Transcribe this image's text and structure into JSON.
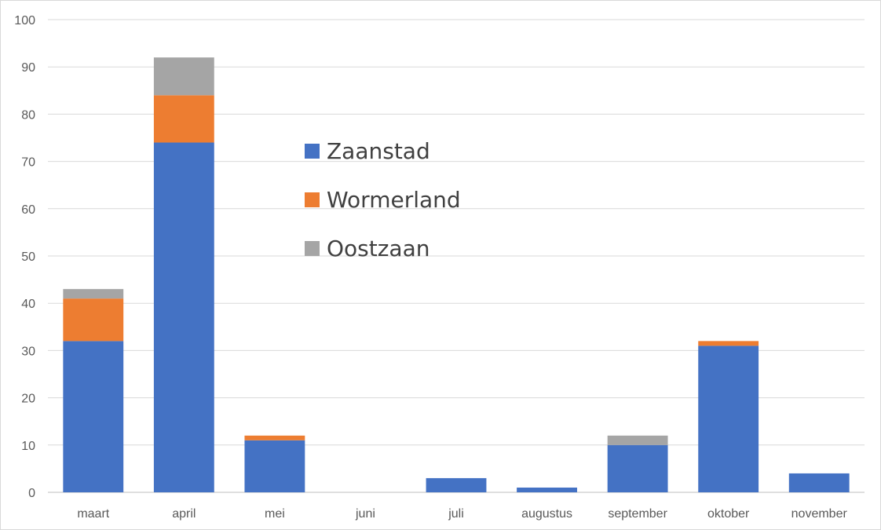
{
  "chart_data": {
    "type": "bar",
    "stacked": true,
    "categories": [
      "maart",
      "april",
      "mei",
      "juni",
      "juli",
      "augustus",
      "september",
      "oktober",
      "november"
    ],
    "series": [
      {
        "name": "Zaanstad",
        "color": "#4472C4",
        "values": [
          32,
          74,
          11,
          0,
          3,
          1,
          10,
          31,
          4
        ]
      },
      {
        "name": "Wormerland",
        "color": "#ED7D31",
        "values": [
          9,
          10,
          1,
          0,
          0,
          0,
          0,
          1,
          0
        ]
      },
      {
        "name": "Oostzaan",
        "color": "#A5A5A5",
        "values": [
          2,
          8,
          0,
          0,
          0,
          0,
          2,
          0,
          0
        ]
      }
    ],
    "ylim": [
      0,
      100
    ],
    "yticks": [
      0,
      10,
      20,
      30,
      40,
      50,
      60,
      70,
      80,
      90,
      100
    ],
    "grid": true,
    "legend_position": "inside-center"
  }
}
